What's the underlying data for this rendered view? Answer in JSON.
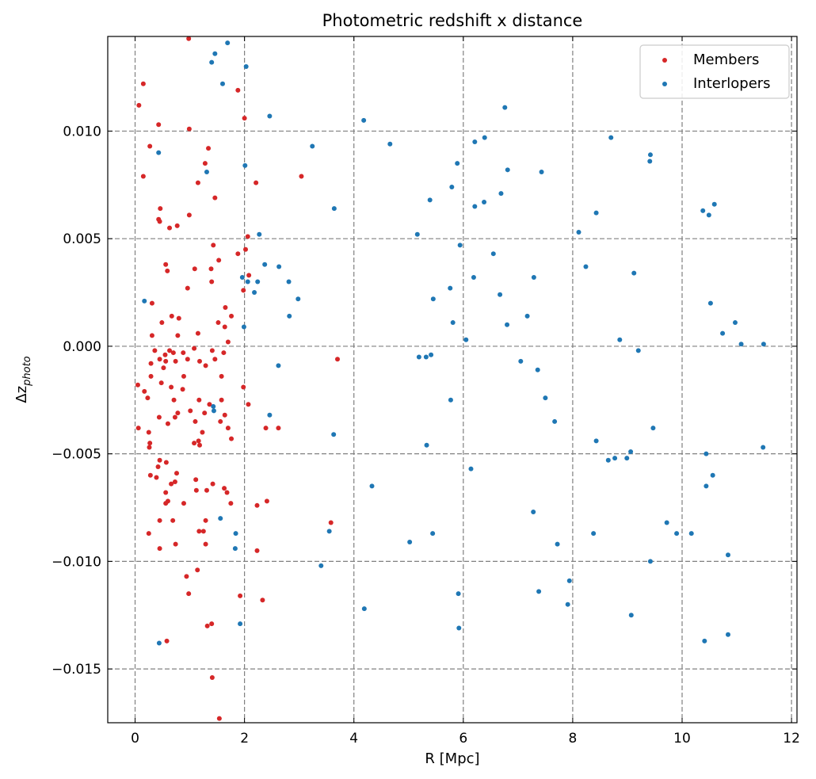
{
  "chart_data": {
    "type": "scatter",
    "title": "Photometric redshift x distance",
    "xlabel": "R [Mpc]",
    "ylabel": "Δz_photo",
    "ylabel_main": "Δz",
    "ylabel_sub": "photo",
    "xlim": [
      -0.5,
      12.1
    ],
    "ylim": [
      -0.0175,
      0.0144
    ],
    "xticks": [
      0,
      2,
      4,
      6,
      8,
      10,
      12
    ],
    "xtick_labels": [
      "0",
      "2",
      "4",
      "6",
      "8",
      "10",
      "12"
    ],
    "yticks": [
      -0.015,
      -0.01,
      -0.005,
      0.0,
      0.005,
      0.01
    ],
    "ytick_labels": [
      "−0.015",
      "−0.010",
      "−0.005",
      "0.000",
      "0.005",
      "0.010"
    ],
    "grid": true,
    "legend_position": "top-right",
    "series": [
      {
        "name": "Members",
        "color": "#d62728",
        "points": [
          [
            0.98,
            0.0143
          ],
          [
            0.15,
            0.0122
          ],
          [
            0.07,
            0.0112
          ],
          [
            1.88,
            0.0119
          ],
          [
            0.43,
            0.0103
          ],
          [
            0.99,
            0.0101
          ],
          [
            2.0,
            0.0106
          ],
          [
            0.27,
            0.0093
          ],
          [
            1.34,
            0.0092
          ],
          [
            0.15,
            0.0079
          ],
          [
            1.28,
            0.0085
          ],
          [
            1.15,
            0.0076
          ],
          [
            2.21,
            0.0076
          ],
          [
            3.04,
            0.0079
          ],
          [
            1.46,
            0.0069
          ],
          [
            0.46,
            0.0064
          ],
          [
            0.43,
            0.0059
          ],
          [
            0.45,
            0.0058
          ],
          [
            0.99,
            0.0061
          ],
          [
            0.77,
            0.0056
          ],
          [
            0.63,
            0.0055
          ],
          [
            2.06,
            0.0051
          ],
          [
            1.43,
            0.0047
          ],
          [
            2.02,
            0.0045
          ],
          [
            1.88,
            0.0043
          ],
          [
            1.53,
            0.004
          ],
          [
            0.56,
            0.0038
          ],
          [
            1.09,
            0.0036
          ],
          [
            1.39,
            0.0036
          ],
          [
            0.59,
            0.0035
          ],
          [
            2.08,
            0.0033
          ],
          [
            1.4,
            0.003
          ],
          [
            0.96,
            0.0027
          ],
          [
            1.98,
            0.0026
          ],
          [
            1.65,
            0.0018
          ],
          [
            0.31,
            0.002
          ],
          [
            0.8,
            0.0013
          ],
          [
            0.67,
            0.0014
          ],
          [
            0.49,
            0.0011
          ],
          [
            1.52,
            0.0011
          ],
          [
            1.76,
            0.0014
          ],
          [
            1.64,
            0.0009
          ],
          [
            0.31,
            0.0005
          ],
          [
            0.78,
            0.0005
          ],
          [
            1.15,
            0.0006
          ],
          [
            1.7,
            0.0002
          ],
          [
            0.36,
            -0.0002
          ],
          [
            0.55,
            -0.0004
          ],
          [
            0.63,
            -0.0002
          ],
          [
            0.7,
            -0.0003
          ],
          [
            0.88,
            -0.0003
          ],
          [
            1.08,
            -0.0001
          ],
          [
            1.41,
            -0.0002
          ],
          [
            1.62,
            -0.0003
          ],
          [
            0.45,
            -0.0006
          ],
          [
            0.56,
            -0.0007
          ],
          [
            0.74,
            -0.0007
          ],
          [
            0.96,
            -0.0006
          ],
          [
            1.18,
            -0.0007
          ],
          [
            1.46,
            -0.0006
          ],
          [
            3.7,
            -0.0006
          ],
          [
            0.29,
            -0.0008
          ],
          [
            0.52,
            -0.001
          ],
          [
            0.89,
            -0.0014
          ],
          [
            1.29,
            -0.0009
          ],
          [
            0.29,
            -0.0014
          ],
          [
            0.48,
            -0.0017
          ],
          [
            0.05,
            -0.0018
          ],
          [
            0.66,
            -0.0019
          ],
          [
            0.87,
            -0.002
          ],
          [
            1.58,
            -0.0014
          ],
          [
            1.98,
            -0.0019
          ],
          [
            0.17,
            -0.0021
          ],
          [
            0.23,
            -0.0024
          ],
          [
            0.71,
            -0.0025
          ],
          [
            1.17,
            -0.0025
          ],
          [
            1.36,
            -0.0027
          ],
          [
            1.58,
            -0.0025
          ],
          [
            2.07,
            -0.0027
          ],
          [
            0.78,
            -0.0031
          ],
          [
            0.44,
            -0.0033
          ],
          [
            0.73,
            -0.0033
          ],
          [
            1.01,
            -0.003
          ],
          [
            1.27,
            -0.0031
          ],
          [
            1.64,
            -0.0032
          ],
          [
            1.56,
            -0.0035
          ],
          [
            1.7,
            -0.0038
          ],
          [
            0.06,
            -0.0038
          ],
          [
            0.6,
            -0.0036
          ],
          [
            1.1,
            -0.0035
          ],
          [
            2.39,
            -0.0038
          ],
          [
            2.62,
            -0.0038
          ],
          [
            1.23,
            -0.004
          ],
          [
            0.25,
            -0.004
          ],
          [
            1.76,
            -0.0043
          ],
          [
            1.16,
            -0.0044
          ],
          [
            1.18,
            -0.0046
          ],
          [
            1.08,
            -0.0045
          ],
          [
            0.27,
            -0.0045
          ],
          [
            0.26,
            -0.0047
          ],
          [
            0.45,
            -0.0053
          ],
          [
            0.57,
            -0.0054
          ],
          [
            0.42,
            -0.0056
          ],
          [
            0.39,
            -0.0061
          ],
          [
            0.28,
            -0.006
          ],
          [
            0.76,
            -0.0059
          ],
          [
            1.42,
            -0.0064
          ],
          [
            0.73,
            -0.0063
          ],
          [
            0.66,
            -0.0064
          ],
          [
            1.11,
            -0.0062
          ],
          [
            1.63,
            -0.0066
          ],
          [
            1.31,
            -0.0067
          ],
          [
            1.68,
            -0.0068
          ],
          [
            1.12,
            -0.0067
          ],
          [
            0.56,
            -0.0068
          ],
          [
            0.6,
            -0.0072
          ],
          [
            0.89,
            -0.0073
          ],
          [
            0.56,
            -0.0073
          ],
          [
            1.75,
            -0.0073
          ],
          [
            2.41,
            -0.0072
          ],
          [
            2.23,
            -0.0074
          ],
          [
            0.45,
            -0.0081
          ],
          [
            0.69,
            -0.0081
          ],
          [
            1.29,
            -0.0081
          ],
          [
            3.58,
            -0.0082
          ],
          [
            0.25,
            -0.0087
          ],
          [
            1.17,
            -0.0086
          ],
          [
            1.25,
            -0.0086
          ],
          [
            0.74,
            -0.0092
          ],
          [
            1.29,
            -0.0092
          ],
          [
            0.45,
            -0.0094
          ],
          [
            2.23,
            -0.0095
          ],
          [
            1.14,
            -0.0104
          ],
          [
            0.94,
            -0.0107
          ],
          [
            0.98,
            -0.0115
          ],
          [
            1.92,
            -0.0116
          ],
          [
            2.33,
            -0.0118
          ],
          [
            1.32,
            -0.013
          ],
          [
            1.4,
            -0.0129
          ],
          [
            0.58,
            -0.0137
          ],
          [
            1.41,
            -0.0154
          ],
          [
            1.54,
            -0.0173
          ]
        ]
      },
      {
        "name": "Interlopers",
        "color": "#1f77b4",
        "points": [
          [
            1.69,
            0.0141
          ],
          [
            1.46,
            0.0136
          ],
          [
            1.4,
            0.0132
          ],
          [
            2.03,
            0.013
          ],
          [
            1.6,
            0.0122
          ],
          [
            6.76,
            0.0111
          ],
          [
            2.46,
            0.0107
          ],
          [
            4.18,
            0.0105
          ],
          [
            6.39,
            0.0097
          ],
          [
            8.7,
            0.0097
          ],
          [
            6.21,
            0.0095
          ],
          [
            4.66,
            0.0094
          ],
          [
            3.24,
            0.0093
          ],
          [
            0.43,
            0.009
          ],
          [
            9.42,
            0.0089
          ],
          [
            5.89,
            0.0085
          ],
          [
            9.41,
            0.0086
          ],
          [
            2.01,
            0.0084
          ],
          [
            6.81,
            0.0082
          ],
          [
            7.43,
            0.0081
          ],
          [
            1.31,
            0.0081
          ],
          [
            5.79,
            0.0074
          ],
          [
            6.69,
            0.0071
          ],
          [
            5.39,
            0.0068
          ],
          [
            6.38,
            0.0067
          ],
          [
            10.59,
            0.0066
          ],
          [
            6.21,
            0.0065
          ],
          [
            3.64,
            0.0064
          ],
          [
            10.38,
            0.0063
          ],
          [
            8.43,
            0.0062
          ],
          [
            10.49,
            0.0061
          ],
          [
            8.11,
            0.0053
          ],
          [
            2.27,
            0.0052
          ],
          [
            5.16,
            0.0052
          ],
          [
            5.94,
            0.0047
          ],
          [
            6.55,
            0.0043
          ],
          [
            2.37,
            0.0038
          ],
          [
            8.24,
            0.0037
          ],
          [
            2.63,
            0.0037
          ],
          [
            9.12,
            0.0034
          ],
          [
            7.29,
            0.0032
          ],
          [
            1.96,
            0.0032
          ],
          [
            6.19,
            0.0032
          ],
          [
            2.06,
            0.003
          ],
          [
            2.24,
            0.003
          ],
          [
            2.81,
            0.003
          ],
          [
            5.76,
            0.0027
          ],
          [
            2.18,
            0.0025
          ],
          [
            6.67,
            0.0024
          ],
          [
            2.98,
            0.0022
          ],
          [
            5.45,
            0.0022
          ],
          [
            0.17,
            0.0021
          ],
          [
            10.52,
            0.002
          ],
          [
            7.17,
            0.0014
          ],
          [
            2.82,
            0.0014
          ],
          [
            5.81,
            0.0011
          ],
          [
            10.97,
            0.0011
          ],
          [
            6.8,
            0.001
          ],
          [
            1.99,
            0.0009
          ],
          [
            10.74,
            0.0006
          ],
          [
            6.05,
            0.0003
          ],
          [
            8.86,
            0.0003
          ],
          [
            11.08,
            0.0001
          ],
          [
            11.49,
            0.0001
          ],
          [
            9.2,
            -0.0002
          ],
          [
            5.41,
            -0.0004
          ],
          [
            5.32,
            -0.0005
          ],
          [
            5.19,
            -0.0005
          ],
          [
            7.05,
            -0.0007
          ],
          [
            2.62,
            -0.0009
          ],
          [
            7.36,
            -0.0011
          ],
          [
            7.5,
            -0.0024
          ],
          [
            5.77,
            -0.0025
          ],
          [
            1.43,
            -0.0028
          ],
          [
            1.44,
            -0.003
          ],
          [
            2.46,
            -0.0032
          ],
          [
            7.67,
            -0.0035
          ],
          [
            9.47,
            -0.0038
          ],
          [
            3.63,
            -0.0041
          ],
          [
            8.43,
            -0.0044
          ],
          [
            5.33,
            -0.0046
          ],
          [
            11.48,
            -0.0047
          ],
          [
            9.06,
            -0.0049
          ],
          [
            10.44,
            -0.005
          ],
          [
            8.99,
            -0.0052
          ],
          [
            8.77,
            -0.0052
          ],
          [
            8.65,
            -0.0053
          ],
          [
            6.14,
            -0.0057
          ],
          [
            10.56,
            -0.006
          ],
          [
            4.33,
            -0.0065
          ],
          [
            10.44,
            -0.0065
          ],
          [
            1.56,
            -0.008
          ],
          [
            7.28,
            -0.0077
          ],
          [
            9.72,
            -0.0082
          ],
          [
            3.55,
            -0.0086
          ],
          [
            8.38,
            -0.0087
          ],
          [
            1.84,
            -0.0087
          ],
          [
            9.9,
            -0.0087
          ],
          [
            10.17,
            -0.0087
          ],
          [
            5.44,
            -0.0087
          ],
          [
            5.02,
            -0.0091
          ],
          [
            7.72,
            -0.0092
          ],
          [
            1.83,
            -0.0094
          ],
          [
            10.84,
            -0.0097
          ],
          [
            9.42,
            -0.01
          ],
          [
            3.4,
            -0.0102
          ],
          [
            7.94,
            -0.0109
          ],
          [
            7.38,
            -0.0114
          ],
          [
            5.91,
            -0.0115
          ],
          [
            7.91,
            -0.012
          ],
          [
            4.19,
            -0.0122
          ],
          [
            9.07,
            -0.0125
          ],
          [
            1.92,
            -0.0129
          ],
          [
            5.92,
            -0.0131
          ],
          [
            10.84,
            -0.0134
          ],
          [
            0.44,
            -0.0138
          ],
          [
            10.41,
            -0.0137
          ]
        ]
      }
    ]
  }
}
